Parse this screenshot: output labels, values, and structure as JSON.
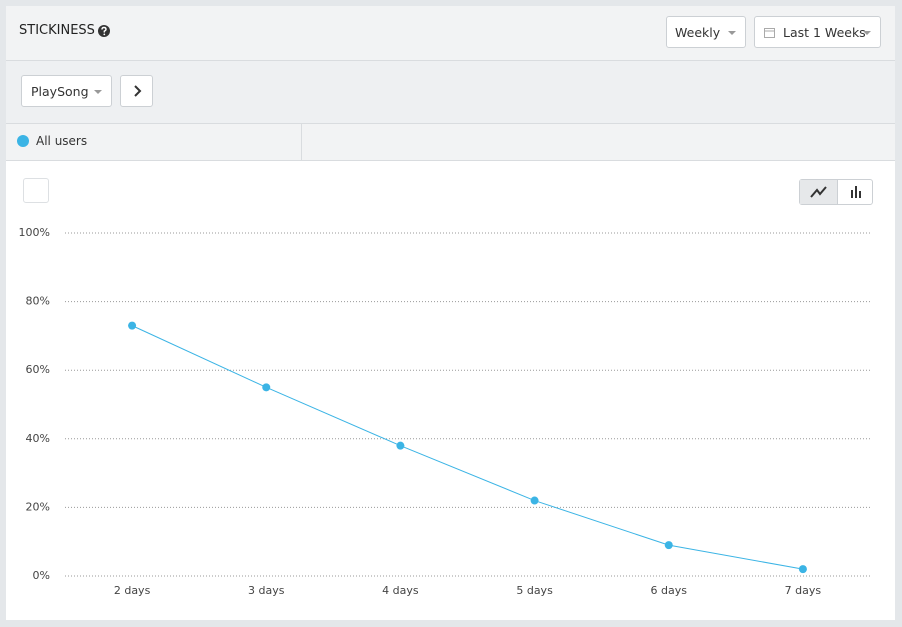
{
  "header": {
    "title": "STICKINESS"
  },
  "controls": {
    "interval": "Weekly",
    "range": "Last 1 Weeks",
    "event": "PlaySong"
  },
  "chart_data": {
    "type": "line",
    "categories": [
      "2 days",
      "3 days",
      "4 days",
      "5 days",
      "6 days",
      "7 days"
    ],
    "series": [
      {
        "name": "All users",
        "color": "#3bb4e5",
        "values": [
          73,
          55,
          38,
          22,
          9,
          2
        ]
      }
    ],
    "ylim": [
      0,
      100
    ],
    "yticks": [
      {
        "value": 0,
        "label": "0%"
      },
      {
        "value": 20,
        "label": "20%"
      },
      {
        "value": 40,
        "label": "40%"
      },
      {
        "value": 60,
        "label": "60%"
      },
      {
        "value": 80,
        "label": "80%"
      },
      {
        "value": 100,
        "label": "100%"
      }
    ],
    "grid": true
  }
}
